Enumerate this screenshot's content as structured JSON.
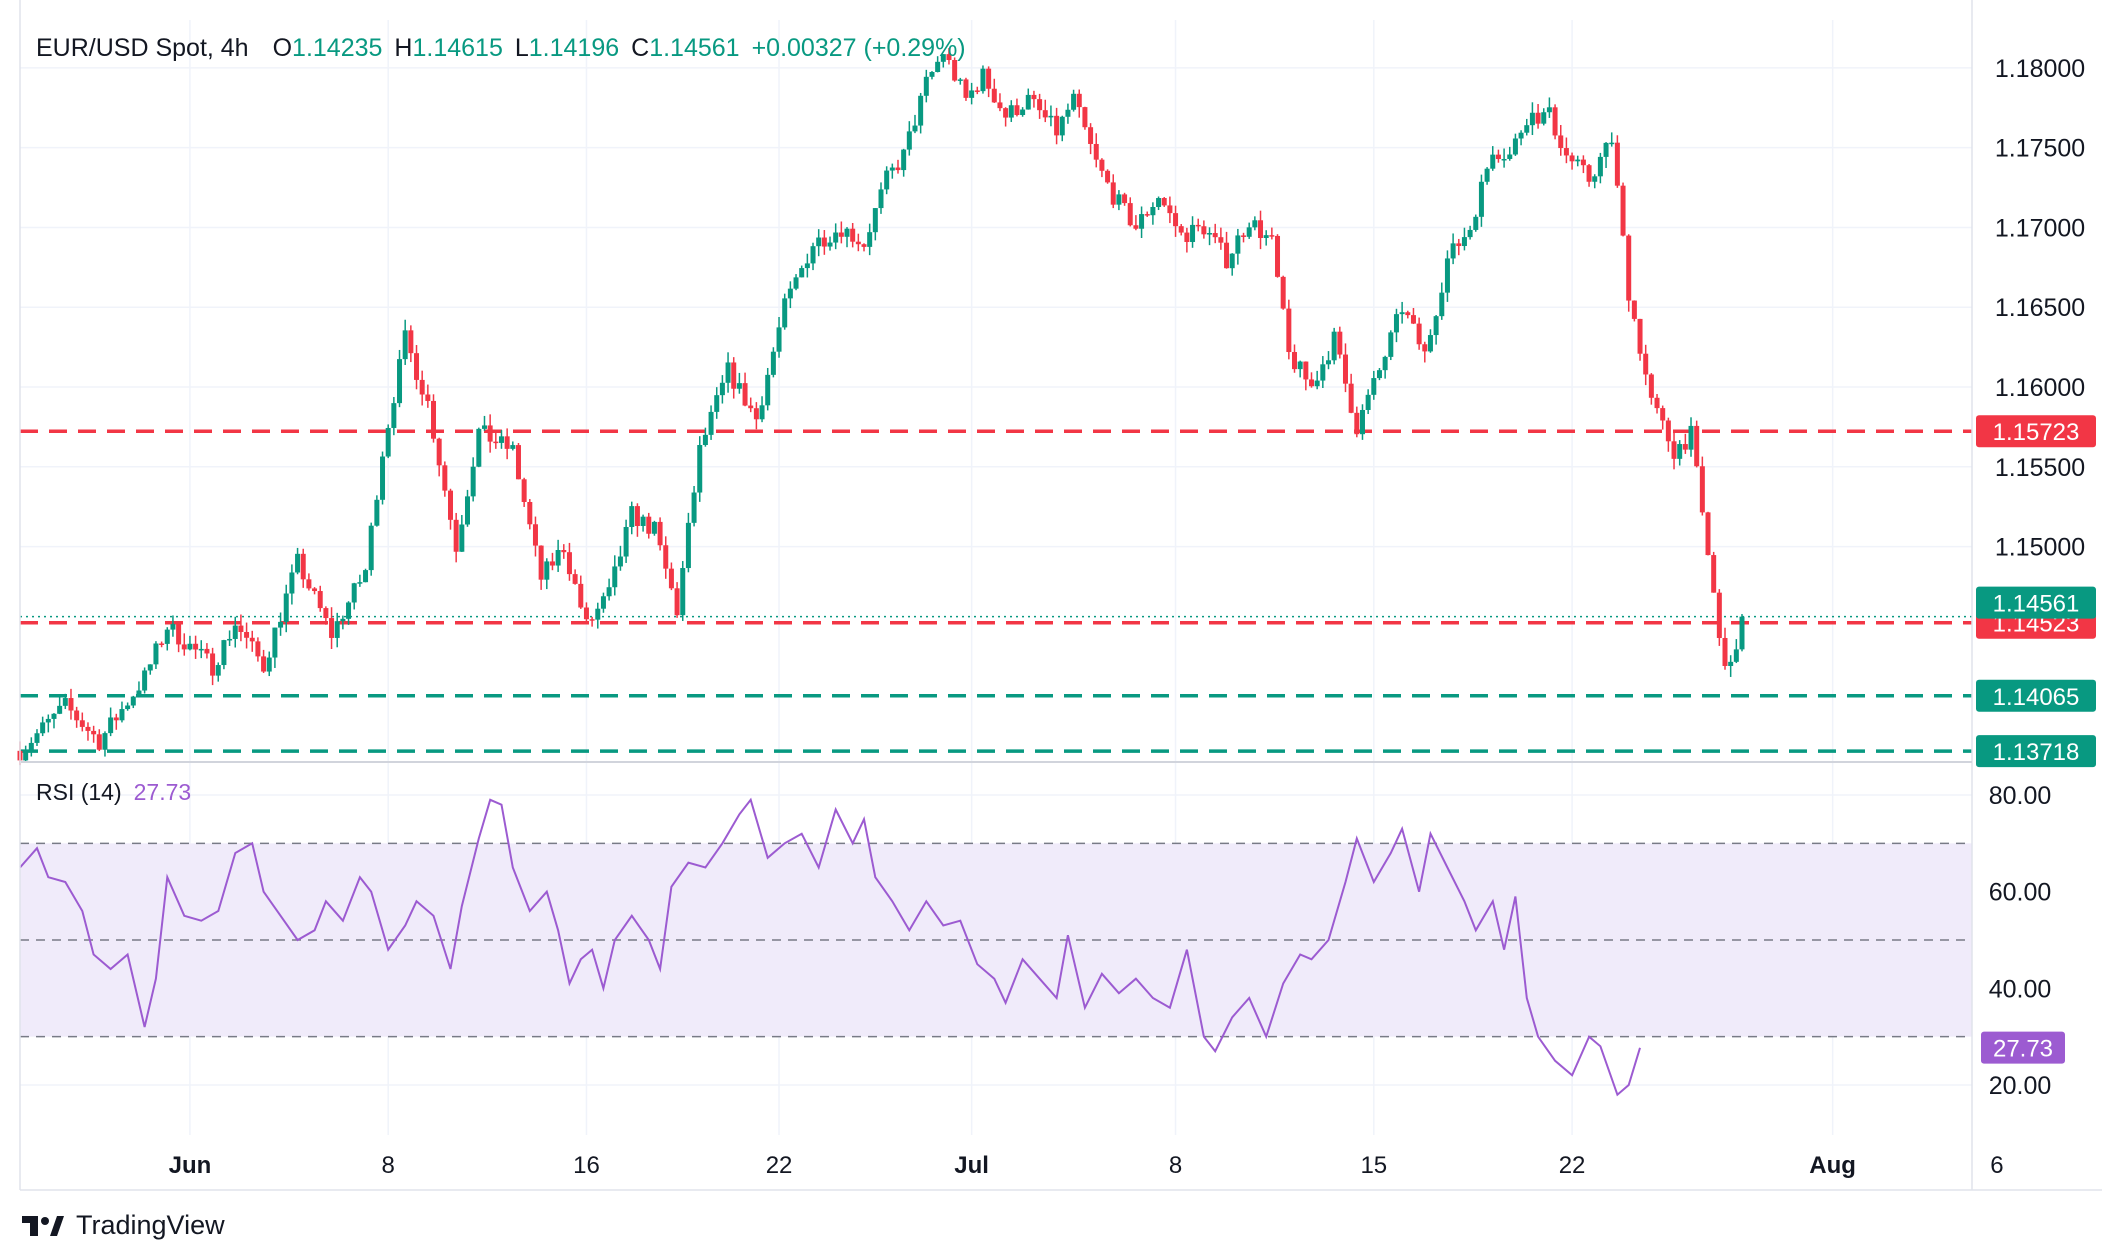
{
  "header": {
    "symbol": "EUR/USD Spot, 4h",
    "o_label": "O",
    "o_value": "1.14235",
    "h_label": "H",
    "h_value": "1.14615",
    "l_label": "L",
    "l_value": "1.14196",
    "c_label": "C",
    "c_value": "1.14561",
    "change": "+0.00327 (+0.29%)"
  },
  "rsi_header": {
    "label": "RSI (14)",
    "value": "27.73"
  },
  "brand": {
    "name": "TradingView"
  },
  "colors": {
    "up": "#089981",
    "down": "#f23645",
    "rsi": "#9c5bd1",
    "rsi_band": "#f0ebfa",
    "grid": "#f0f3fa",
    "axis_text": "#131722"
  },
  "chart_data": {
    "type": "candlestick",
    "title": "EUR/USD Spot, 4h",
    "price_axis": {
      "min": 1.1365,
      "max": 1.183,
      "ticks": [
        "1.18000",
        "1.17500",
        "1.17000",
        "1.16500",
        "1.16000",
        "1.15500",
        "1.15000"
      ]
    },
    "x_axis_labels": [
      "Jun",
      "8",
      "16",
      "22",
      "Jul",
      "8",
      "15",
      "22",
      "Aug",
      "6"
    ],
    "horizontal_levels": [
      {
        "value": 1.15723,
        "label": "1.15723",
        "color": "#f23645",
        "style": "dashed"
      },
      {
        "value": 1.14523,
        "label": "1.14523",
        "color": "#f23645",
        "style": "dashed"
      },
      {
        "value": 1.14065,
        "label": "1.14065",
        "color": "#089981",
        "style": "dashed"
      },
      {
        "value": 1.13718,
        "label": "1.13718",
        "color": "#089981",
        "style": "dashed"
      }
    ],
    "last_price": {
      "value": 1.14561,
      "label": "1.14561"
    },
    "price_path": [
      [
        0,
        1.1372
      ],
      [
        8,
        1.14
      ],
      [
        14,
        1.1378
      ],
      [
        22,
        1.1418
      ],
      [
        26,
        1.145
      ],
      [
        34,
        1.1425
      ],
      [
        38,
        1.1452
      ],
      [
        43,
        1.1425
      ],
      [
        49,
        1.149
      ],
      [
        55,
        1.1445
      ],
      [
        61,
        1.1485
      ],
      [
        64,
        1.156
      ],
      [
        68,
        1.163
      ],
      [
        72,
        1.159
      ],
      [
        77,
        1.15
      ],
      [
        81,
        1.1572
      ],
      [
        87,
        1.156
      ],
      [
        92,
        1.148
      ],
      [
        96,
        1.15
      ],
      [
        100,
        1.145
      ],
      [
        104,
        1.147
      ],
      [
        108,
        1.152
      ],
      [
        112,
        1.151
      ],
      [
        116,
        1.146
      ],
      [
        120,
        1.156
      ],
      [
        125,
        1.161
      ],
      [
        130,
        1.158
      ],
      [
        135,
        1.165
      ],
      [
        140,
        1.169
      ],
      [
        145,
        1.17
      ],
      [
        149,
        1.169
      ],
      [
        153,
        1.173
      ],
      [
        156,
        1.1745
      ],
      [
        160,
        1.179
      ],
      [
        163,
        1.181
      ],
      [
        167,
        1.178
      ],
      [
        170,
        1.1795
      ],
      [
        174,
        1.177
      ],
      [
        178,
        1.178
      ],
      [
        183,
        1.176
      ],
      [
        186,
        1.178
      ],
      [
        190,
        1.174
      ],
      [
        193,
        1.172
      ],
      [
        197,
        1.17
      ],
      [
        201,
        1.172
      ],
      [
        205,
        1.1695
      ],
      [
        209,
        1.17
      ],
      [
        213,
        1.168
      ],
      [
        217,
        1.1705
      ],
      [
        221,
        1.169
      ],
      [
        224,
        1.162
      ],
      [
        228,
        1.16
      ],
      [
        232,
        1.163
      ],
      [
        236,
        1.1575
      ],
      [
        240,
        1.161
      ],
      [
        244,
        1.165
      ],
      [
        248,
        1.162
      ],
      [
        252,
        1.168
      ],
      [
        256,
        1.17
      ],
      [
        260,
        1.175
      ],
      [
        263,
        1.1745
      ],
      [
        266,
        1.177
      ],
      [
        270,
        1.177
      ],
      [
        273,
        1.1745
      ],
      [
        277,
        1.173
      ],
      [
        281,
        1.1755
      ],
      [
        284,
        1.166
      ],
      [
        288,
        1.159
      ],
      [
        292,
        1.156
      ],
      [
        295,
        1.157
      ],
      [
        297,
        1.152
      ],
      [
        299,
        1.147
      ],
      [
        300,
        1.144
      ],
      [
        302,
        1.1422
      ],
      [
        304,
        1.1456
      ]
    ],
    "rsi": {
      "axis_ticks": [
        "80.00",
        "60.00",
        "40.00",
        "20.00"
      ],
      "levels": [
        70,
        50,
        30
      ],
      "band": [
        30,
        70
      ],
      "last": 27.73,
      "points": [
        [
          0,
          65
        ],
        [
          3,
          69
        ],
        [
          5,
          63
        ],
        [
          8,
          62
        ],
        [
          11,
          56
        ],
        [
          13,
          47
        ],
        [
          16,
          44
        ],
        [
          19,
          47
        ],
        [
          22,
          32
        ],
        [
          24,
          42
        ],
        [
          26,
          63
        ],
        [
          29,
          55
        ],
        [
          32,
          54
        ],
        [
          35,
          56
        ],
        [
          38,
          68
        ],
        [
          41,
          70
        ],
        [
          43,
          60
        ],
        [
          46,
          55
        ],
        [
          49,
          50
        ],
        [
          52,
          52
        ],
        [
          54,
          58
        ],
        [
          57,
          54
        ],
        [
          60,
          63
        ],
        [
          62,
          60
        ],
        [
          65,
          48
        ],
        [
          68,
          53
        ],
        [
          70,
          58
        ],
        [
          73,
          55
        ],
        [
          76,
          44
        ],
        [
          78,
          57
        ],
        [
          81,
          71
        ],
        [
          83,
          79
        ],
        [
          85,
          78
        ],
        [
          87,
          65
        ],
        [
          90,
          56
        ],
        [
          93,
          60
        ],
        [
          95,
          52
        ],
        [
          97,
          41
        ],
        [
          99,
          46
        ],
        [
          101,
          48
        ],
        [
          103,
          40
        ],
        [
          105,
          50
        ],
        [
          108,
          55
        ],
        [
          111,
          50
        ],
        [
          113,
          44
        ],
        [
          115,
          61
        ],
        [
          118,
          66
        ],
        [
          121,
          65
        ],
        [
          124,
          70
        ],
        [
          127,
          76
        ],
        [
          129,
          79
        ],
        [
          132,
          67
        ],
        [
          135,
          70
        ],
        [
          138,
          72
        ],
        [
          141,
          65
        ],
        [
          144,
          77
        ],
        [
          147,
          70
        ],
        [
          149,
          75
        ],
        [
          151,
          63
        ],
        [
          154,
          58
        ],
        [
          157,
          52
        ],
        [
          160,
          58
        ],
        [
          163,
          53
        ],
        [
          166,
          54
        ],
        [
          169,
          45
        ],
        [
          172,
          42
        ],
        [
          174,
          37
        ],
        [
          177,
          46
        ],
        [
          180,
          42
        ],
        [
          183,
          38
        ],
        [
          185,
          51
        ],
        [
          188,
          36
        ],
        [
          191,
          43
        ],
        [
          194,
          39
        ],
        [
          197,
          42
        ],
        [
          200,
          38
        ],
        [
          203,
          36
        ],
        [
          206,
          48
        ],
        [
          209,
          30
        ],
        [
          211,
          27
        ],
        [
          214,
          34
        ],
        [
          217,
          38
        ],
        [
          220,
          30
        ],
        [
          223,
          41
        ],
        [
          226,
          47
        ],
        [
          228,
          46
        ],
        [
          231,
          50
        ],
        [
          234,
          62
        ],
        [
          236,
          71
        ],
        [
          239,
          62
        ],
        [
          242,
          68
        ],
        [
          244,
          73
        ],
        [
          247,
          60
        ],
        [
          249,
          72
        ],
        [
          252,
          65
        ],
        [
          255,
          58
        ],
        [
          257,
          52
        ],
        [
          260,
          58
        ],
        [
          262,
          48
        ],
        [
          264,
          59
        ],
        [
          266,
          38
        ],
        [
          268,
          30
        ],
        [
          271,
          25
        ],
        [
          274,
          22
        ],
        [
          277,
          30
        ],
        [
          279,
          28
        ],
        [
          282,
          18
        ],
        [
          284,
          20
        ],
        [
          286,
          27.7
        ]
      ]
    }
  }
}
